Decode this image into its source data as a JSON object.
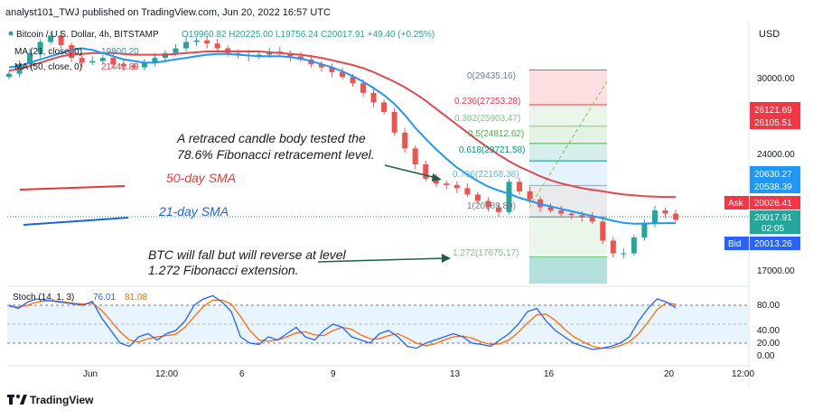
{
  "publish_header": "analyst101_TWJ published on TradingView.com, Jun 20, 2022 16:57 UTC",
  "legend": {
    "symbol": "Bitcoin / U.S. Dollar, 4h, BITSTAMP",
    "ohlc": "O19960.82  H20225.00  L19756.24  C20017.91  +49.40 (+0.25%)",
    "ma21_label": "MA (21, close, 0)",
    "ma21_value": "19800.20",
    "ma50_label": "MA (50, close, 0)",
    "ma50_value": "21448.89"
  },
  "currency": "USD",
  "annotations": {
    "retrace_line1": "A retraced candle body tested the",
    "retrace_line2": "78.6% Fibonacci retracement level.",
    "sma50": "50-day SMA",
    "sma21": "21-day SMA",
    "btc_line1": "BTC will fall but will reverse at level",
    "btc_line2": "1.272 Fibonacci extension."
  },
  "fib_levels": [
    {
      "ratio": "0",
      "price": "29435.16",
      "value": 29435.16,
      "color": "#808080"
    },
    {
      "ratio": "0.236",
      "price": "27253.28",
      "value": 27253.28,
      "color": "#f23645"
    },
    {
      "ratio": "0.382",
      "price": "25903.47",
      "value": 25903.47,
      "color": "#81c784"
    },
    {
      "ratio": "0.5",
      "price": "24812.62",
      "value": 24812.62,
      "color": "#4caf50"
    },
    {
      "ratio": "0.618",
      "price": "23721.58",
      "value": 23721.58,
      "color": "#009688"
    },
    {
      "ratio": "0.786",
      "price": "22168.38",
      "value": 22168.38,
      "color": "#64b5f6"
    },
    {
      "ratio": "1",
      "price": "20189.89",
      "value": 20189.89,
      "color": "#787b86"
    },
    {
      "ratio": "1.272",
      "price": "17675.17",
      "value": 17675.17,
      "color": "#81c784"
    }
  ],
  "fib_labels": {
    "l0": "0(29435.16)",
    "l236": "0.236(27253.28)",
    "l382": "0.382(25903.47)",
    "l5": "0.5(24812.62)",
    "l618": "0.618(23721.58)",
    "l786": "0.786(22168.38)",
    "l1": "1(20189.89)",
    "l1272": "1.272(17675.17)"
  },
  "price_axis": {
    "ticks": [
      "30000.00",
      "24000.00",
      "17000.00"
    ],
    "tags": [
      {
        "text": "26121.69",
        "color": "#f23645"
      },
      {
        "text": "26105.51",
        "color": "#f23645"
      },
      {
        "text": "20630.27",
        "color": "#2196f3"
      },
      {
        "text": "20538.39",
        "color": "#2196f3"
      },
      {
        "text": "20017.91",
        "color": "#26a69a"
      },
      {
        "text": "02:05",
        "color": "#26a69a"
      }
    ],
    "ask_label": "Ask",
    "ask_value": "20026.41",
    "bid_label": "Bid",
    "bid_value": "20013.26"
  },
  "stoch": {
    "label": "Stoch (14, 1, 3)",
    "k_value": "76.01",
    "d_value": "81.08",
    "ticks": [
      "80.00",
      "40.00",
      "20.00",
      "0.00"
    ]
  },
  "time_axis": [
    "Jun",
    "12:00",
    "6",
    "9",
    "13",
    "16",
    "20",
    "12:00"
  ],
  "footer": {
    "brand": "TradingView"
  },
  "colors": {
    "up": "#26a69a",
    "down": "#ef5350",
    "ma21": "#2196f3",
    "ma50": "#e04a4f",
    "stoch_k": "#2962ff",
    "stoch_d": "#ff6d00",
    "annotation_red": "#e53935",
    "annotation_blue": "#1e63d6"
  },
  "chart_data": [
    {
      "type": "line",
      "title": "Bitcoin / U.S. Dollar, 4h, BITSTAMP",
      "ylabel": "USD",
      "ylim": [
        16000,
        31000
      ],
      "x_ticks": [
        "Jun",
        "12:00",
        "6",
        "9",
        "13",
        "16",
        "20",
        "12:00"
      ],
      "series": [
        {
          "name": "BTC close",
          "values": [
            29200,
            29800,
            30500,
            31200,
            31600,
            31000,
            30200,
            29900,
            30000,
            30200,
            29800,
            29700,
            29600,
            29900,
            30200,
            30500,
            30800,
            31200,
            31300,
            31100,
            30800,
            30500,
            30400,
            30300,
            30400,
            30600,
            30500,
            30300,
            30100,
            29800,
            29600,
            29300,
            29000,
            28600,
            28000,
            27400,
            26800,
            25500,
            24500,
            23500,
            22600,
            22300,
            22200,
            22000,
            21600,
            21200,
            20800,
            20500,
            22400,
            21800,
            21300,
            20800,
            20600,
            20400,
            20300,
            20200,
            19900,
            18700,
            17900,
            17900,
            18900,
            19800,
            20600,
            20400,
            20017.91
          ]
        },
        {
          "name": "MA (21, close, 0)",
          "values": [
            29600,
            29700,
            29900,
            30100,
            30300,
            30500,
            30700,
            30800,
            30700,
            30500,
            30300,
            30100,
            30000,
            29900,
            29900,
            30000,
            30100,
            30200,
            30300,
            30400,
            30450,
            30450,
            30400,
            30350,
            30300,
            30300,
            30300,
            30250,
            30150,
            30000,
            29800,
            29600,
            29350,
            29050,
            28700,
            28300,
            27850,
            27300,
            26600,
            25800,
            25100,
            24450,
            23850,
            23300,
            22850,
            22450,
            22100,
            21850,
            21650,
            21400,
            21200,
            21000,
            20850,
            20700,
            20550,
            20400,
            20250,
            20100,
            19950,
            19820,
            19760,
            19770,
            19790,
            19800,
            19800.2
          ]
        },
        {
          "name": "MA (50, close, 0)",
          "values": [
            29400,
            29500,
            29700,
            29900,
            30100,
            30300,
            30400,
            30450,
            30500,
            30500,
            30500,
            30450,
            30400,
            30400,
            30400,
            30400,
            30450,
            30500,
            30550,
            30600,
            30600,
            30600,
            30600,
            30600,
            30600,
            30550,
            30500,
            30450,
            30400,
            30300,
            30200,
            30050,
            29900,
            29750,
            29550,
            29300,
            29000,
            28700,
            28350,
            27950,
            27500,
            27000,
            26500,
            26000,
            25500,
            25000,
            24550,
            24100,
            23700,
            23350,
            23050,
            22750,
            22500,
            22300,
            22150,
            22000,
            21900,
            21800,
            21700,
            21600,
            21550,
            21500,
            21470,
            21450,
            21448.89
          ]
        }
      ]
    },
    {
      "type": "line",
      "title": "Stoch (14, 1, 3)",
      "ylim": [
        0,
        100
      ],
      "series": [
        {
          "name": "K",
          "values": [
            80,
            75,
            85,
            90,
            88,
            86,
            84,
            82,
            80,
            86,
            60,
            40,
            20,
            15,
            30,
            35,
            25,
            35,
            40,
            55,
            80,
            90,
            95,
            85,
            70,
            30,
            20,
            18,
            30,
            25,
            35,
            45,
            30,
            25,
            40,
            50,
            45,
            30,
            25,
            20,
            35,
            40,
            30,
            15,
            12,
            20,
            25,
            30,
            35,
            30,
            20,
            18,
            15,
            25,
            35,
            50,
            70,
            75,
            55,
            40,
            30,
            20,
            15,
            10,
            12,
            15,
            20,
            30,
            55,
            75,
            90,
            85,
            76.01
          ]
        },
        {
          "name": "D",
          "values": [
            78,
            77,
            80,
            85,
            87,
            87,
            85,
            83,
            82,
            83,
            72,
            55,
            38,
            25,
            22,
            27,
            30,
            32,
            34,
            45,
            62,
            78,
            88,
            88,
            82,
            62,
            40,
            25,
            23,
            25,
            30,
            36,
            38,
            33,
            32,
            40,
            45,
            42,
            33,
            27,
            27,
            32,
            35,
            28,
            20,
            16,
            19,
            25,
            30,
            31,
            28,
            22,
            18,
            19,
            25,
            37,
            52,
            65,
            66,
            56,
            42,
            30,
            22,
            15,
            12,
            12,
            16,
            22,
            35,
            53,
            73,
            84,
            81.08
          ]
        }
      ]
    }
  ]
}
